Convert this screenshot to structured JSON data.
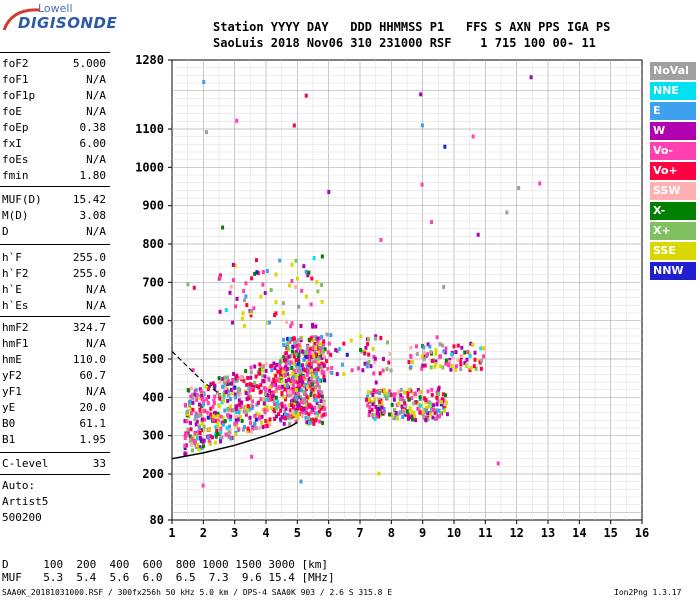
{
  "logo": {
    "top": "Lowell",
    "main": "DIGISONDE"
  },
  "header": {
    "line1": "Station YYYY DAY   DDD HHMMSS P1   FFS S AXN PPS IGA PS",
    "line2": "SaoLuis 2018 Nov06 310 231000 RSF    1 715 100 00- 11"
  },
  "params_group1": [
    {
      "name": "foF2",
      "value": "5.000"
    },
    {
      "name": "foF1",
      "value": "N/A"
    },
    {
      "name": "foF1p",
      "value": "N/A"
    },
    {
      "name": "foE",
      "value": "N/A"
    },
    {
      "name": "foEp",
      "value": "0.38"
    },
    {
      "name": "fxI",
      "value": "6.00"
    },
    {
      "name": "foEs",
      "value": "N/A"
    },
    {
      "name": "fmin",
      "value": "1.80"
    }
  ],
  "params_group2": [
    {
      "name": "MUF(D)",
      "value": "15.42"
    },
    {
      "name": "M(D)",
      "value": "3.08"
    },
    {
      "name": "D",
      "value": "N/A"
    }
  ],
  "params_group3": [
    {
      "name": "h`F",
      "value": "255.0"
    },
    {
      "name": "h`F2",
      "value": "255.0"
    },
    {
      "name": "h`E",
      "value": "N/A"
    },
    {
      "name": "h`Es",
      "value": "N/A"
    }
  ],
  "params_group4": [
    {
      "name": "hmF2",
      "value": "324.7"
    },
    {
      "name": "hmF1",
      "value": "N/A"
    },
    {
      "name": "hmE",
      "value": "110.0"
    },
    {
      "name": "yF2",
      "value": "60.7"
    },
    {
      "name": "yF1",
      "value": "N/A"
    },
    {
      "name": "yE",
      "value": "20.0"
    },
    {
      "name": "B0",
      "value": "61.1"
    },
    {
      "name": "B1",
      "value": "1.95"
    }
  ],
  "params_group5": [
    {
      "name": "C-level",
      "value": "33"
    }
  ],
  "autoscale": {
    "line1": "Auto:",
    "line2": "Artist5",
    "line3": "500200"
  },
  "legend": [
    {
      "label": "NoVal",
      "bg": "#a0a0a0",
      "fg": "#ffffff"
    },
    {
      "label": "NNE",
      "bg": "#00e0f0",
      "fg": "#ffffff"
    },
    {
      "label": "E",
      "bg": "#40a0f0",
      "fg": "#ffffff"
    },
    {
      "label": "W",
      "bg": "#b000b0",
      "fg": "#ffffff"
    },
    {
      "label": "Vo-",
      "bg": "#ff40b0",
      "fg": "#ffffff"
    },
    {
      "label": "Vo+",
      "bg": "#ff0040",
      "fg": "#ffffff"
    },
    {
      "label": "SSW",
      "bg": "#ffb0b0",
      "fg": "#ffffff"
    },
    {
      "label": "X-",
      "bg": "#008000",
      "fg": "#ffffff"
    },
    {
      "label": "X+",
      "bg": "#80c060",
      "fg": "#ffffff"
    },
    {
      "label": "SSE",
      "bg": "#d8d800",
      "fg": "#ffffff"
    },
    {
      "label": "NNW",
      "bg": "#2020d0",
      "fg": "#ffffff"
    }
  ],
  "footer": {
    "d_label": "D",
    "d_values": "  100  200  400  600  800 1000 1500 3000 [km]",
    "muf_label": "MUF",
    "muf_values": "  5.3  5.4  5.6  6.0  6.5  7.3  9.6 15.4 [MHz]",
    "status": "SAA0K_20181031000.RSF / 300fx256h 50 kHz 5.0 km / DPS-4 SAA0K 903 / 2.6 S 315.8 E",
    "version": "Ion2Png 1.3.17"
  },
  "chart_data": {
    "type": "scatter",
    "xlim": [
      1,
      16
    ],
    "ylim": [
      80,
      1280
    ],
    "xticks": [
      "1",
      "2",
      "3",
      "4",
      "5",
      "6",
      "7",
      "8",
      "9",
      "10",
      "11",
      "12",
      "13",
      "14",
      "15",
      "16"
    ],
    "yticks": [
      {
        "v": 80,
        "label": "80"
      },
      {
        "v": 200,
        "label": "200"
      },
      {
        "v": 300,
        "label": "300"
      },
      {
        "v": 400,
        "label": "400"
      },
      {
        "v": 500,
        "label": "500"
      },
      {
        "v": 600,
        "label": "600"
      },
      {
        "v": 700,
        "label": "700"
      },
      {
        "v": 800,
        "label": "800"
      },
      {
        "v": 900,
        "label": "900"
      },
      {
        "v": 1000,
        "label": "1000"
      },
      {
        "v": 1100,
        "label": "1100"
      },
      {
        "v": 1280,
        "label": "1280"
      }
    ],
    "grid": true,
    "echo_clusters": [
      {
        "x0": 1.4,
        "x1": 5.8,
        "ylo": 250,
        "yhi": 420,
        "n": 700,
        "slope": 28
      },
      {
        "x0": 4.5,
        "x1": 5.9,
        "ylo": 330,
        "yhi": 560,
        "n": 260,
        "slope": 0
      },
      {
        "x0": 7.2,
        "x1": 9.8,
        "ylo": 340,
        "yhi": 420,
        "n": 220,
        "slope": 0
      },
      {
        "x0": 8.5,
        "x1": 11.0,
        "ylo": 470,
        "yhi": 540,
        "n": 90,
        "slope": 0
      },
      {
        "x0": 5.5,
        "x1": 8.0,
        "ylo": 460,
        "yhi": 560,
        "n": 60,
        "slope": 0
      },
      {
        "x0": 2.5,
        "x1": 5.8,
        "ylo": 580,
        "yhi": 780,
        "n": 70,
        "slope": 0
      },
      {
        "x0": 1.5,
        "x1": 13.0,
        "ylo": 150,
        "yhi": 1250,
        "n": 40,
        "slope": 0
      }
    ],
    "trace_solid": [
      [
        1.0,
        240
      ],
      [
        2.0,
        255
      ],
      [
        3.0,
        275
      ],
      [
        4.0,
        300
      ],
      [
        4.8,
        325
      ],
      [
        5.0,
        335
      ]
    ],
    "trace_dashed": [
      [
        1.0,
        520
      ],
      [
        1.5,
        480
      ],
      [
        2.0,
        440
      ],
      [
        2.5,
        410
      ]
    ]
  }
}
